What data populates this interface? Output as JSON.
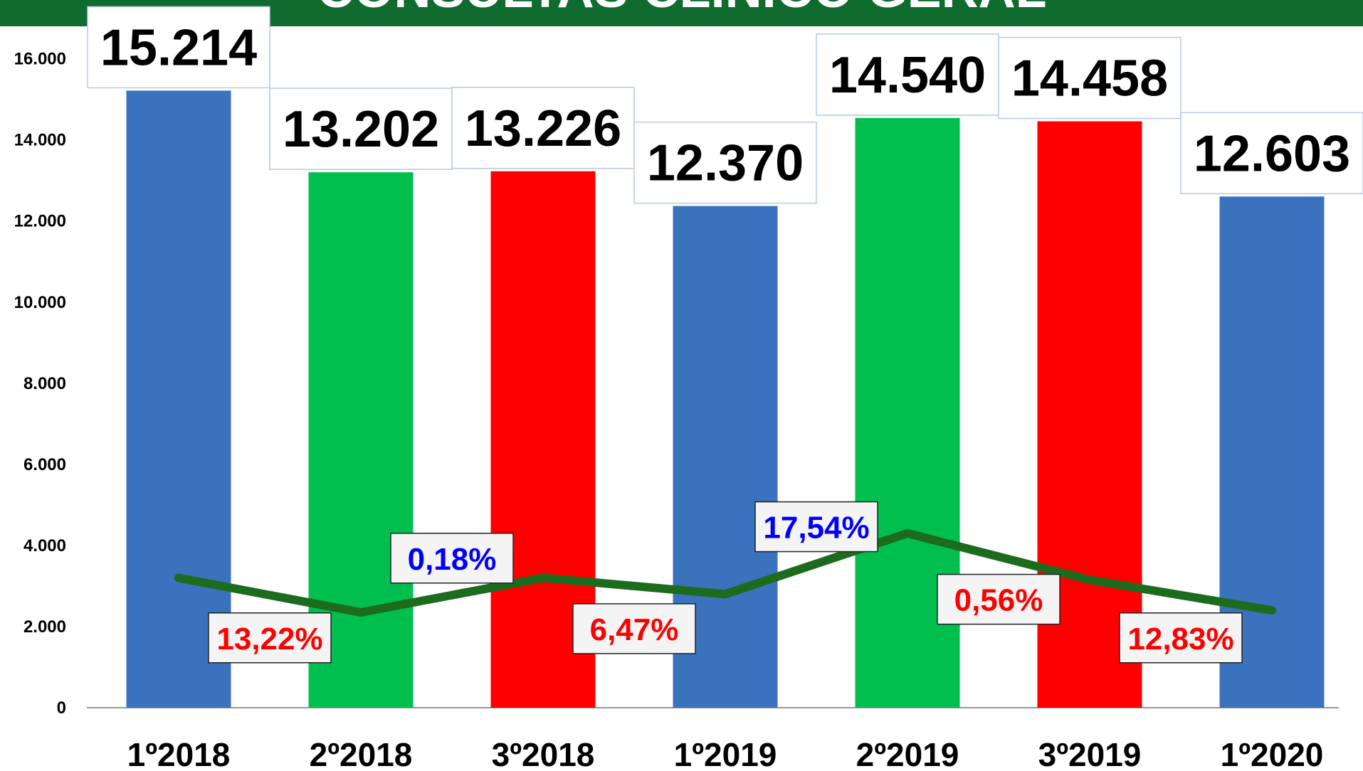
{
  "chart_data": {
    "type": "bar",
    "title": "CONSULTAS CLÍNICO GERAL",
    "categories": [
      "1º2018",
      "2º2018",
      "3º2018",
      "1º2019",
      "2º2019",
      "3º2019",
      "1º2020"
    ],
    "values": [
      15214,
      13202,
      13226,
      12370,
      14540,
      14458,
      12603
    ],
    "value_labels": [
      "15.214",
      "13.202",
      "13.226",
      "12.370",
      "14.540",
      "14.458",
      "12.603"
    ],
    "colors": [
      "#3a72bd",
      "#00bf4f",
      "#ff0000",
      "#3a72bd",
      "#00bf4f",
      "#ff0000",
      "#3a72bd"
    ],
    "ylim": [
      0,
      16800
    ],
    "yticks": [
      0,
      {
        "value": 2000,
        "label": "2.000"
      },
      {
        "value": 4000,
        "label": "4.000"
      },
      {
        "value": 6000,
        "label": "6.000"
      },
      {
        "value": 8000,
        "label": "8.000"
      },
      {
        "value": 10000,
        "label": "10.000"
      },
      {
        "value": 12000,
        "label": "12.000"
      },
      {
        "value": 14000,
        "label": "14.000"
      },
      {
        "value": 16000,
        "label": "16.000"
      }
    ],
    "line": {
      "color": "#1d6b1d",
      "values": [
        3200,
        2350,
        3200,
        2800,
        4300,
        3150,
        2400
      ]
    },
    "changes": {
      "values": [
        13.22,
        0.18,
        6.47,
        17.54,
        0.56,
        12.83
      ],
      "value_labels": [
        "13,22%",
        "0,18%",
        "6,47%",
        "17,54%",
        "0,56%",
        "12,83%"
      ],
      "colors": [
        "#ff0000",
        "#0000ff",
        "#ff0000",
        "#0000ff",
        "#ff0000",
        "#ff0000"
      ]
    }
  }
}
